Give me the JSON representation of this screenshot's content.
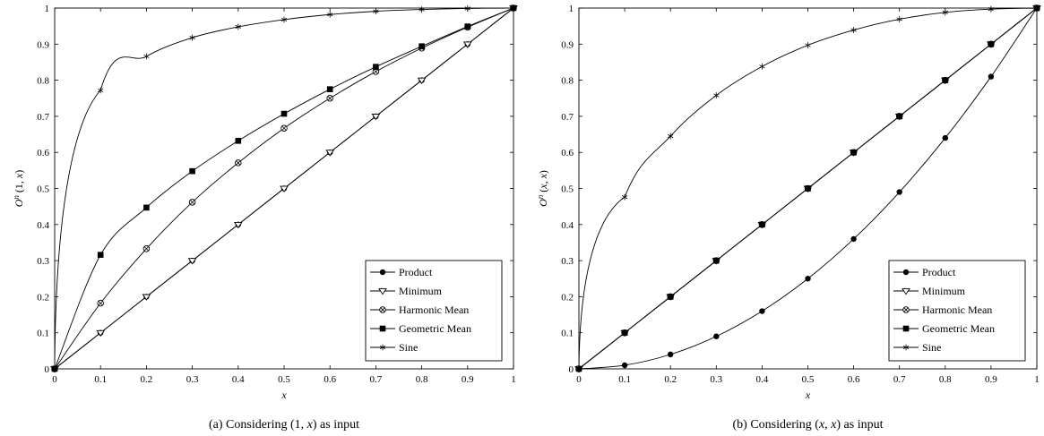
{
  "chart_data": [
    {
      "type": "line",
      "caption": "(a) Considering (1, x) as input",
      "xlabel": "x",
      "ylabel": "O^n (1, x)",
      "xlim": [
        0,
        1
      ],
      "ylim": [
        0,
        1
      ],
      "x_ticks": [
        "0",
        "0.1",
        "0.2",
        "0.3",
        "0.4",
        "0.5",
        "0.6",
        "0.7",
        "0.8",
        "0.9",
        "1"
      ],
      "y_ticks": [
        "0",
        "0.1",
        "0.2",
        "0.3",
        "0.4",
        "0.5",
        "0.6",
        "0.7",
        "0.8",
        "0.9",
        "1"
      ],
      "grid": false,
      "legend_position": "bottom-right",
      "x": [
        0,
        0.1,
        0.2,
        0.3,
        0.4,
        0.5,
        0.6,
        0.7,
        0.8,
        0.9,
        1
      ],
      "series": [
        {
          "name": "Product",
          "marker": "filled-circle",
          "values": [
            0,
            0.1,
            0.2,
            0.3,
            0.4,
            0.5,
            0.6,
            0.7,
            0.8,
            0.9,
            1
          ]
        },
        {
          "name": "Minimum",
          "marker": "open-triangle-down",
          "values": [
            0,
            0.1,
            0.2,
            0.3,
            0.4,
            0.5,
            0.6,
            0.7,
            0.8,
            0.9,
            1
          ]
        },
        {
          "name": "Harmonic Mean",
          "marker": "circle-cross",
          "values": [
            0,
            0.182,
            0.333,
            0.462,
            0.571,
            0.667,
            0.75,
            0.824,
            0.889,
            0.947,
            1
          ]
        },
        {
          "name": "Geometric Mean",
          "marker": "filled-square",
          "values": [
            0,
            0.316,
            0.447,
            0.548,
            0.632,
            0.707,
            0.775,
            0.837,
            0.894,
            0.949,
            1
          ]
        },
        {
          "name": "Sine",
          "marker": "asterisk",
          "values": [
            0,
            0.772,
            0.866,
            0.918,
            0.948,
            0.968,
            0.982,
            0.991,
            0.996,
            0.999,
            1
          ]
        }
      ]
    },
    {
      "type": "line",
      "caption": "(b) Considering (x, x) as input",
      "xlabel": "x",
      "ylabel": "O^n (x, x)",
      "xlim": [
        0,
        1
      ],
      "ylim": [
        0,
        1
      ],
      "x_ticks": [
        "0",
        "0.1",
        "0.2",
        "0.3",
        "0.4",
        "0.5",
        "0.6",
        "0.7",
        "0.8",
        "0.9",
        "1"
      ],
      "y_ticks": [
        "0",
        "0.1",
        "0.2",
        "0.3",
        "0.4",
        "0.5",
        "0.6",
        "0.7",
        "0.8",
        "0.9",
        "1"
      ],
      "grid": false,
      "legend_position": "bottom-right",
      "x": [
        0,
        0.1,
        0.2,
        0.3,
        0.4,
        0.5,
        0.6,
        0.7,
        0.8,
        0.9,
        1
      ],
      "series": [
        {
          "name": "Product",
          "marker": "filled-circle",
          "values": [
            0,
            0.01,
            0.04,
            0.09,
            0.16,
            0.25,
            0.36,
            0.49,
            0.64,
            0.81,
            1
          ]
        },
        {
          "name": "Minimum",
          "marker": "open-triangle-down",
          "values": [
            0,
            0.1,
            0.2,
            0.3,
            0.4,
            0.5,
            0.6,
            0.7,
            0.8,
            0.9,
            1
          ]
        },
        {
          "name": "Harmonic Mean",
          "marker": "circle-cross",
          "values": [
            0,
            0.1,
            0.2,
            0.3,
            0.4,
            0.5,
            0.6,
            0.7,
            0.8,
            0.9,
            1
          ]
        },
        {
          "name": "Geometric Mean",
          "marker": "filled-square",
          "values": [
            0,
            0.1,
            0.2,
            0.3,
            0.4,
            0.5,
            0.6,
            0.7,
            0.8,
            0.9,
            1
          ]
        },
        {
          "name": "Sine",
          "marker": "asterisk",
          "values": [
            0,
            0.476,
            0.645,
            0.758,
            0.838,
            0.897,
            0.939,
            0.969,
            0.988,
            0.997,
            1
          ]
        }
      ]
    }
  ]
}
